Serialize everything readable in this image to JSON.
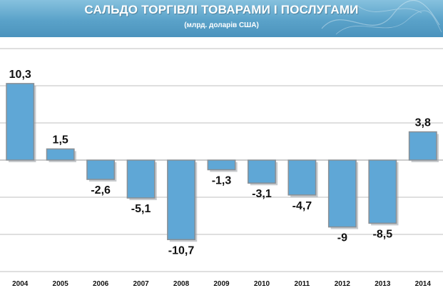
{
  "header": {
    "title": "САЛЬДО ТОРГІВЛІ ТОВАРАМИ І ПОСЛУГАМИ",
    "subtitle": "(млрд. доларів США)"
  },
  "colors": {
    "banner": "#5aa2c9",
    "bar_fill": "#5fa7d6",
    "bar_stroke": "#8a8f94",
    "grid": "#bfbfbf"
  },
  "chart_data": {
    "type": "bar",
    "title": "САЛЬДО ТОРГІВЛІ ТОВАРАМИ І ПОСЛУГАМИ",
    "subtitle": "(млрд. доларів США)",
    "categories": [
      "2004",
      "2005",
      "2006",
      "2007",
      "2008",
      "2009",
      "2010",
      "2011",
      "2012",
      "2013",
      "2014"
    ],
    "values": [
      10.3,
      1.5,
      -2.6,
      -5.1,
      -10.7,
      -1.3,
      -3.1,
      -4.7,
      -9,
      -8.5,
      3.8
    ],
    "data_labels": [
      "10,3",
      "1,5",
      "-2,6",
      "-5,1",
      "-10,7",
      "-1,3",
      "-3,1",
      "-4,7",
      "-9",
      "-8,5",
      "3,8"
    ],
    "ylim": [
      -15,
      15
    ],
    "grid": true,
    "y_axis_visible": false,
    "legend": "none"
  }
}
